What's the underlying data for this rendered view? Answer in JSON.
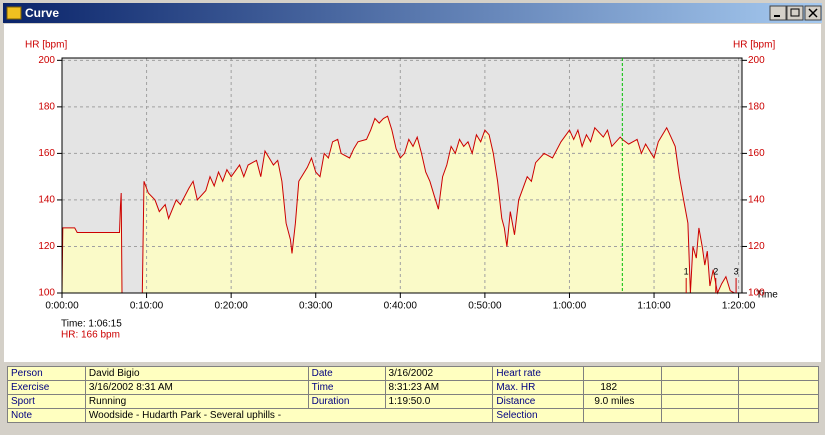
{
  "window_title": "Curve",
  "chart_data": {
    "type": "line",
    "y_label": "HR [bpm]",
    "x_label": "Time",
    "color": "#cc0000",
    "fill_color": "#fafac8",
    "grid": true,
    "x": [
      0,
      0.1,
      1.5,
      1.8,
      6.8,
      6.9,
      7.0,
      7.1,
      9.5,
      9.7,
      10.2,
      11,
      11.5,
      12.2,
      12.6,
      13.5,
      14,
      15,
      15.5,
      16,
      17,
      17.5,
      18,
      18.5,
      19,
      19.5,
      20,
      21,
      21.5,
      22,
      23,
      23.5,
      24,
      24.5,
      25,
      25.5,
      26,
      26.5,
      27,
      27.2,
      27.6,
      28,
      29,
      29.5,
      30,
      30.5,
      31,
      31.5,
      32,
      32.6,
      33,
      34,
      34.5,
      35,
      36,
      36.5,
      37,
      37.5,
      38,
      38.5,
      39,
      39.5,
      40,
      40.5,
      41,
      41.5,
      42,
      42.5,
      43,
      43.5,
      44,
      44.5,
      45,
      45.5,
      46,
      46.5,
      47,
      47.5,
      48,
      48.5,
      49,
      49.5,
      50,
      50.5,
      51,
      51.5,
      52,
      52.3,
      52.6,
      53,
      53.5,
      54,
      55,
      55.5,
      56,
      57,
      58,
      59,
      60,
      60.5,
      61,
      61.5,
      62,
      62.5,
      63,
      64,
      64.5,
      65,
      66,
      66.25,
      67,
      68,
      68.5,
      69,
      70,
      70.5,
      71,
      71.5,
      72,
      72.5,
      73,
      73.5,
      74,
      74.3,
      74.6,
      75,
      75.3,
      75.7,
      76,
      76.3,
      76.6,
      77,
      77.5,
      78,
      78.5,
      79,
      79.5
    ],
    "values": [
      100,
      128,
      128,
      126,
      126,
      137,
      143,
      100,
      100,
      148,
      143,
      140,
      135,
      138,
      132,
      140,
      138,
      145,
      148,
      140,
      144,
      150,
      146,
      152,
      148,
      153,
      150,
      155,
      150,
      155,
      157,
      150,
      161,
      158,
      155,
      157,
      148,
      130,
      123,
      117,
      130,
      148,
      154,
      158,
      152,
      150,
      160,
      158,
      165,
      166,
      160,
      158,
      162,
      165,
      166,
      170,
      175,
      173,
      175,
      176,
      170,
      162,
      158,
      160,
      166,
      163,
      167,
      160,
      152,
      148,
      142,
      136,
      150,
      155,
      163,
      160,
      166,
      163,
      165,
      160,
      168,
      165,
      170,
      168,
      160,
      148,
      132,
      128,
      120,
      135,
      125,
      140,
      150,
      148,
      156,
      160,
      158,
      165,
      170,
      166,
      170,
      163,
      168,
      165,
      171,
      167,
      170,
      163,
      167,
      166,
      164,
      166,
      160,
      164,
      158,
      165,
      168,
      171,
      167,
      163,
      150,
      140,
      130,
      100,
      120,
      115,
      128,
      120,
      112,
      118,
      103,
      110,
      100,
      104,
      107,
      101,
      100
    ],
    "xlim": [
      0,
      80.4
    ],
    "ylim": [
      100,
      201
    ],
    "xticks": [
      {
        "value": 0,
        "label": "0:00:00"
      },
      {
        "value": 10,
        "label": "0:10:00"
      },
      {
        "value": 20,
        "label": "0:20:00"
      },
      {
        "value": 30,
        "label": "0:30:00"
      },
      {
        "value": 40,
        "label": "0:40:00"
      },
      {
        "value": 50,
        "label": "0:50:00"
      },
      {
        "value": 60,
        "label": "1:00:00"
      },
      {
        "value": 70,
        "label": "1:10:00"
      },
      {
        "value": 80,
        "label": "1:20:00"
      }
    ],
    "yticks": [
      100,
      120,
      140,
      160,
      180,
      200
    ],
    "cursor": {
      "x": 66.25,
      "time_label": "Time: 1:06:15",
      "hr_label": "HR: 166 bpm"
    },
    "laps": [
      {
        "label": "1",
        "x": 73.8
      },
      {
        "label": "2",
        "x": 77.3
      },
      {
        "label": "3",
        "x": 79.7
      }
    ]
  },
  "table": {
    "rows": [
      [
        "Person",
        "David Bigio",
        "Date",
        "3/16/2002",
        "Heart rate"
      ],
      [
        "Exercise",
        "3/16/2002 8:31 AM",
        "Time",
        "8:31:23 AM",
        "Max. HR",
        "182"
      ],
      [
        "Sport",
        "Running",
        "Duration",
        "1:19:50.0",
        "Distance",
        "9.0 miles"
      ],
      [
        "Note",
        "Woodside - Hudarth Park - Several uphills -",
        "Selection"
      ]
    ]
  }
}
